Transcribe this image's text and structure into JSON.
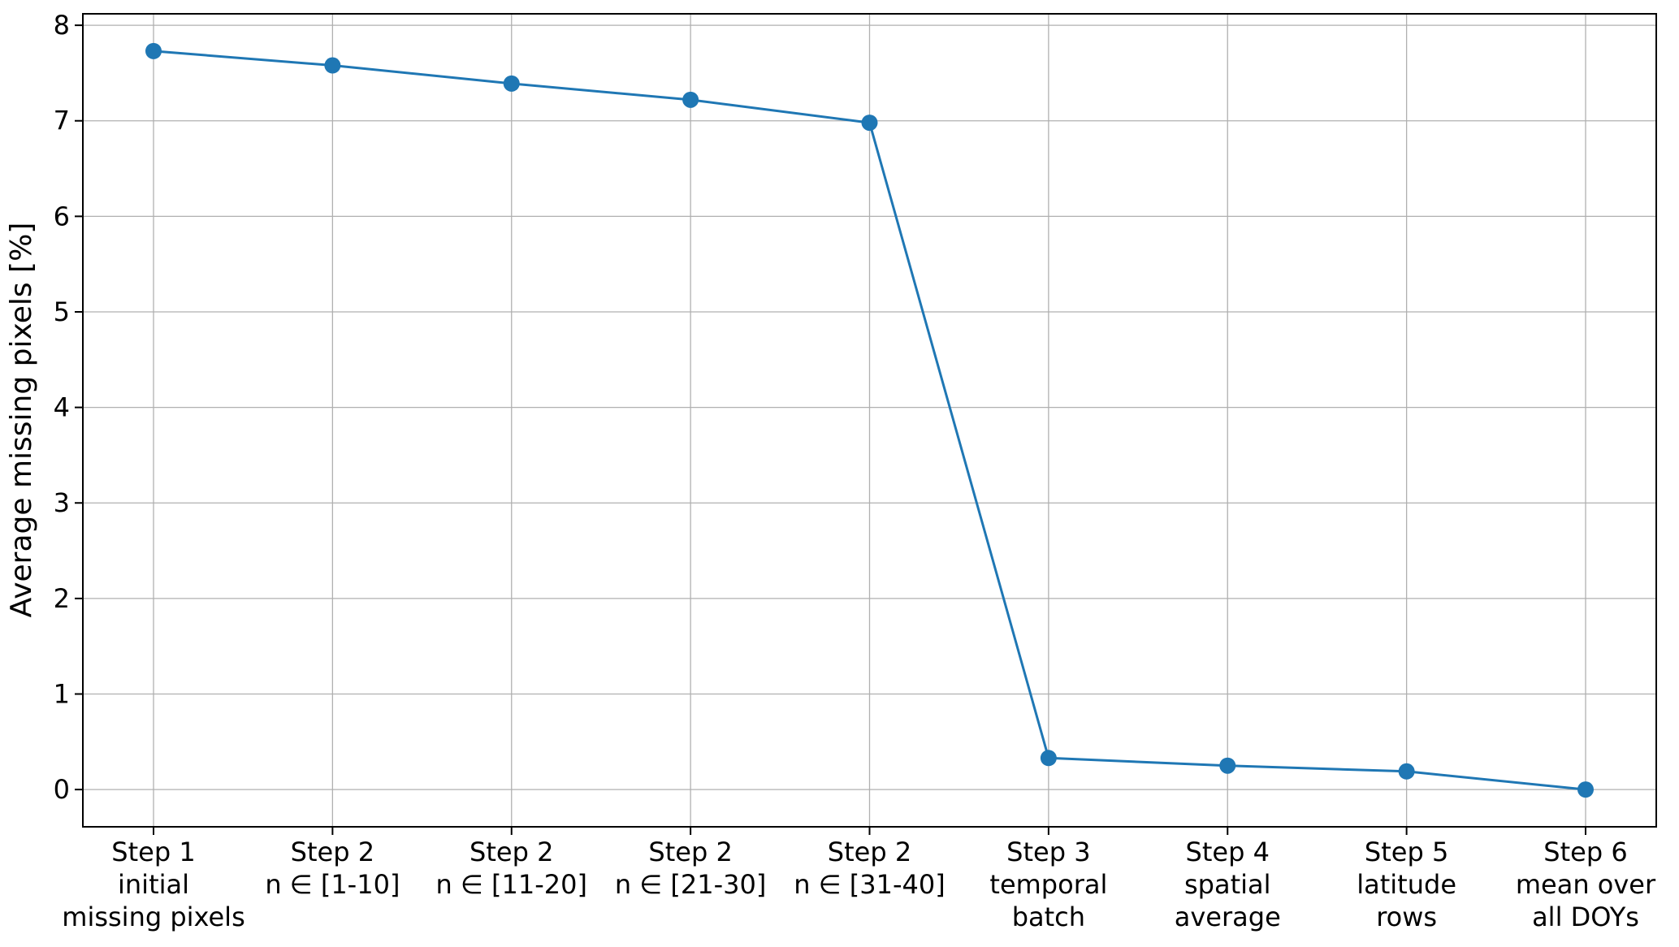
{
  "chart_data": {
    "type": "line",
    "title": "",
    "xlabel": "",
    "ylabel": "Average missing pixels [%]",
    "categories": [
      [
        "Step 1",
        "initial",
        "missing pixels"
      ],
      [
        "Step 2",
        "n ∈ [1-10]"
      ],
      [
        "Step 2",
        "n ∈ [11-20]"
      ],
      [
        "Step 2",
        "n ∈ [21-30]"
      ],
      [
        "Step 2",
        "n ∈ [31-40]"
      ],
      [
        "Step 3",
        "temporal",
        "batch"
      ],
      [
        "Step 4",
        "spatial",
        "average"
      ],
      [
        "Step 5",
        "latitude",
        "rows"
      ],
      [
        "Step 6",
        "mean over",
        "all DOYs"
      ]
    ],
    "series": [
      {
        "name": "Average missing pixels",
        "values": [
          7.73,
          7.58,
          7.39,
          7.22,
          6.98,
          0.33,
          0.25,
          0.19,
          0.0
        ]
      }
    ],
    "yticks": [
      0,
      1,
      2,
      3,
      4,
      5,
      6,
      7,
      8
    ],
    "ylim": [
      -0.39,
      8.12
    ],
    "grid": true,
    "legend": false,
    "marker": "circle",
    "colors": {
      "line": "#1f77b4",
      "marker": "#1f77b4",
      "grid": "#b0b0b0",
      "spine": "#000000",
      "text": "#000000",
      "background": "#ffffff"
    }
  }
}
